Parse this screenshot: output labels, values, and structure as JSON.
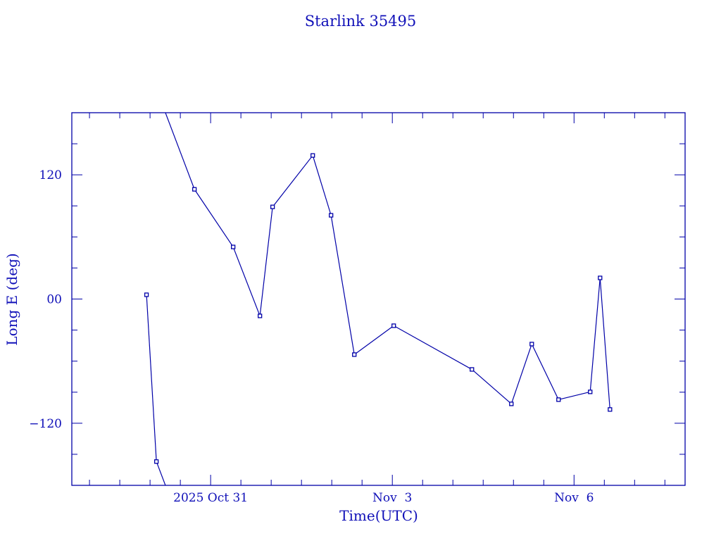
{
  "chart_data": {
    "type": "line",
    "title": "Starlink 35495",
    "xlabel": "Time(UTC)",
    "ylabel": "Long E (deg)",
    "xlim": [
      "2025-10-28T17:00:00Z",
      "2025-11-07T20:00:00Z"
    ],
    "ylim": [
      -180,
      180
    ],
    "x_ticks": [
      {
        "value": "2025-10-31T00:00:00Z",
        "label": "2025 Oct 31"
      },
      {
        "value": "2025-11-03T00:00:00Z",
        "label": "Nov  3"
      },
      {
        "value": "2025-11-06T00:00:00Z",
        "label": "Nov  6"
      }
    ],
    "y_ticks": [
      {
        "value": 120,
        "label": "120"
      },
      {
        "value": 0,
        "label": "00"
      },
      {
        "value": -120,
        "label": "−120"
      }
    ],
    "grid": false,
    "longitude_wraps": true,
    "color": "#0000a8",
    "series": [
      {
        "marker": "square",
        "points": [
          {
            "x": "2025-10-29T22:36:00Z",
            "y": 4.1
          },
          {
            "x": "2025-10-30T02:31:00Z",
            "y": -157.0
          },
          {
            "x": "2025-10-30T17:35:00Z",
            "y": 106.0
          },
          {
            "x": "2025-10-31T08:56:00Z",
            "y": 50.3
          },
          {
            "x": "2025-10-31T19:32:00Z",
            "y": -16.3
          },
          {
            "x": "2025-11-01T00:33:00Z",
            "y": 89.0
          },
          {
            "x": "2025-11-01T16:28:00Z",
            "y": 138.7
          },
          {
            "x": "2025-11-01T23:43:00Z",
            "y": 80.9
          },
          {
            "x": "2025-11-02T08:56:00Z",
            "y": -53.7
          },
          {
            "x": "2025-11-03T00:33:00Z",
            "y": -25.8
          },
          {
            "x": "2025-11-04T07:32:00Z",
            "y": -68.0
          },
          {
            "x": "2025-11-04T23:10:00Z",
            "y": -101.3
          },
          {
            "x": "2025-11-05T07:15:00Z",
            "y": -43.5
          },
          {
            "x": "2025-11-05T17:51:00Z",
            "y": -97.2
          },
          {
            "x": "2025-11-06T06:24:00Z",
            "y": -89.7
          },
          {
            "x": "2025-11-06T10:19:00Z",
            "y": 20.4
          },
          {
            "x": "2025-11-06T14:14:00Z",
            "y": -106.7
          }
        ]
      }
    ]
  }
}
